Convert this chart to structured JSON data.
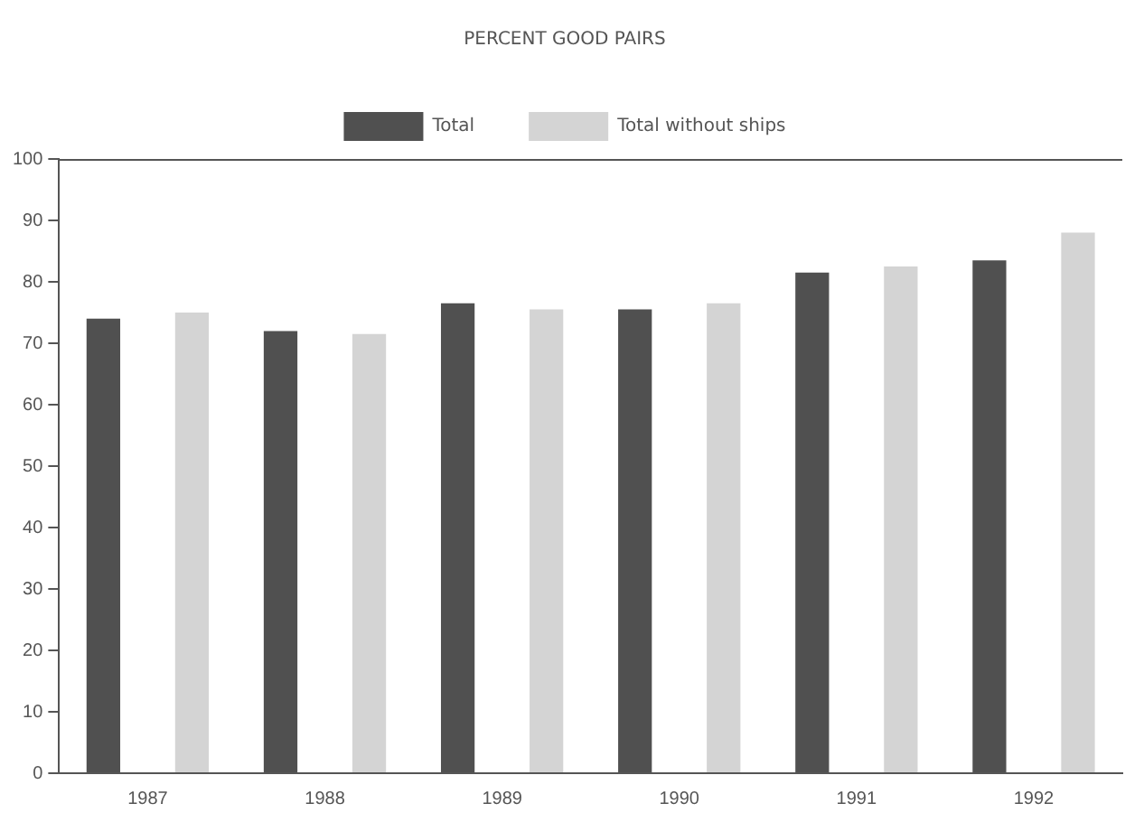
{
  "chart_data": {
    "type": "bar",
    "title": "PERCENT GOOD PAIRS",
    "categories": [
      "1987",
      "1988",
      "1989",
      "1990",
      "1991",
      "1992"
    ],
    "series": [
      {
        "name": "Total",
        "color": "#505050",
        "values": [
          74,
          72,
          76.5,
          75.5,
          81.5,
          83.5
        ]
      },
      {
        "name": "Total without ships",
        "color": "#d4d4d4",
        "values": [
          75,
          71.5,
          75.5,
          76.5,
          82.5,
          88
        ]
      }
    ],
    "ylim": [
      0,
      100
    ],
    "yticks": [
      0,
      10,
      20,
      30,
      40,
      50,
      60,
      70,
      80,
      90,
      100
    ],
    "grid": false,
    "legend": "top"
  }
}
